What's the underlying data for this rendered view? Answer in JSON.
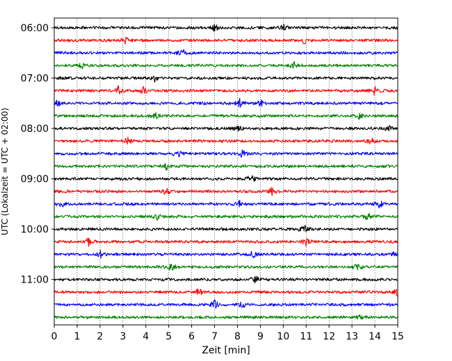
{
  "chart_data": {
    "type": "line",
    "title": "",
    "xlabel": "Zeit  [min]",
    "ylabel": "UTC (Lokalzeit = UTC + 02:00)",
    "xlim": [
      0,
      15
    ],
    "x_ticks": [
      "0",
      "1",
      "2",
      "3",
      "4",
      "5",
      "6",
      "7",
      "8",
      "9",
      "10",
      "11",
      "12",
      "13",
      "14",
      "15"
    ],
    "y_ticks": [
      "06:00",
      "07:00",
      "08:00",
      "09:00",
      "10:00",
      "11:00"
    ],
    "grid": "vertical dotted",
    "trace_interval_minutes": 15,
    "series": [
      {
        "start": "06:00",
        "color": "#000000",
        "events": [
          7.0,
          10.0
        ]
      },
      {
        "start": "06:15",
        "color": "#ff0000",
        "events": [
          3.1,
          10.9
        ]
      },
      {
        "start": "06:30",
        "color": "#0000ff",
        "events": [
          5.6
        ]
      },
      {
        "start": "06:45",
        "color": "#008000",
        "events": [
          1.2,
          10.5
        ]
      },
      {
        "start": "07:00",
        "color": "#000000",
        "events": [
          4.4
        ]
      },
      {
        "start": "07:15",
        "color": "#ff0000",
        "events": [
          2.8,
          3.9,
          14.0
        ]
      },
      {
        "start": "07:30",
        "color": "#0000ff",
        "events": [
          0.1,
          8.1,
          9.0
        ]
      },
      {
        "start": "07:45",
        "color": "#008000",
        "events": [
          4.4,
          13.3
        ]
      },
      {
        "start": "08:00",
        "color": "#000000",
        "events": [
          8.0,
          14.6
        ]
      },
      {
        "start": "08:15",
        "color": "#ff0000",
        "events": [
          3.2,
          13.8
        ]
      },
      {
        "start": "08:30",
        "color": "#0000ff",
        "events": [
          5.4,
          8.2
        ]
      },
      {
        "start": "08:45",
        "color": "#008000",
        "events": [
          4.9
        ]
      },
      {
        "start": "09:00",
        "color": "#000000",
        "events": [
          8.6
        ]
      },
      {
        "start": "09:15",
        "color": "#ff0000",
        "events": [
          4.9,
          9.5
        ]
      },
      {
        "start": "09:30",
        "color": "#0000ff",
        "events": [
          0.3,
          8.1,
          14.2
        ]
      },
      {
        "start": "09:45",
        "color": "#008000",
        "events": [
          4.5,
          13.7
        ]
      },
      {
        "start": "10:00",
        "color": "#000000",
        "events": [
          10.9
        ]
      },
      {
        "start": "10:15",
        "color": "#ff0000",
        "events": [
          1.5,
          11.0
        ]
      },
      {
        "start": "10:30",
        "color": "#0000ff",
        "events": [
          2.0,
          8.7,
          14.9
        ]
      },
      {
        "start": "10:45",
        "color": "#008000",
        "events": [
          5.1,
          13.2
        ]
      },
      {
        "start": "11:00",
        "color": "#000000",
        "events": [
          8.8
        ]
      },
      {
        "start": "11:15",
        "color": "#ff0000",
        "events": [
          6.3,
          15.0
        ]
      },
      {
        "start": "11:30",
        "color": "#0000ff",
        "events": [
          7.0,
          8.2
        ]
      },
      {
        "start": "11:45",
        "color": "#008000",
        "events": [
          13.4
        ]
      }
    ]
  }
}
